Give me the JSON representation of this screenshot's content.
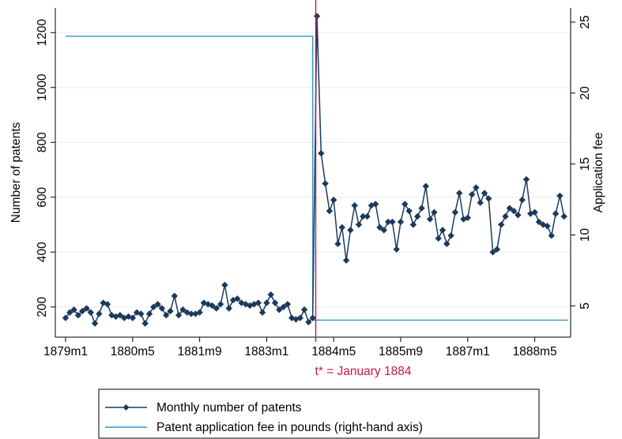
{
  "chart_data": {
    "type": "line",
    "y_label": "Number of patents",
    "y2_label": "Application fee",
    "y_ticks": [
      "200",
      "400",
      "600",
      "800",
      "1000",
      "1200"
    ],
    "y2_ticks": [
      "5",
      "10",
      "15",
      "20",
      "25"
    ],
    "x_ticks": [
      "1879m1",
      "1880m5",
      "1881m9",
      "1883m1",
      "1884m5",
      "1885m9",
      "1887m1",
      "1888m5"
    ],
    "x_tick_months": [
      0,
      16,
      32,
      48,
      64,
      80,
      96,
      112
    ],
    "annotation": "t* = January 1884",
    "annotation_month": 60,
    "ylim": [
      90,
      1290
    ],
    "y2lim": [
      2.8,
      26.0
    ],
    "grid": "horizontal",
    "series": [
      {
        "name": "Monthly number of patents",
        "color": "#1b3a5c",
        "marker": "diamond",
        "start_month": 0,
        "values": [
          160,
          180,
          190,
          170,
          185,
          195,
          180,
          140,
          175,
          215,
          210,
          170,
          165,
          170,
          160,
          165,
          160,
          180,
          175,
          140,
          175,
          200,
          210,
          195,
          170,
          185,
          240,
          170,
          190,
          180,
          175,
          175,
          180,
          215,
          210,
          205,
          195,
          210,
          280,
          195,
          225,
          230,
          215,
          210,
          205,
          210,
          215,
          180,
          215,
          245,
          215,
          190,
          200,
          210,
          160,
          155,
          160,
          190,
          145,
          160,
          1260,
          760,
          650,
          550,
          590,
          430,
          490,
          370,
          480,
          570,
          500,
          530,
          530,
          570,
          575,
          490,
          480,
          510,
          510,
          410,
          510,
          575,
          550,
          500,
          530,
          560,
          640,
          520,
          545,
          450,
          480,
          430,
          460,
          545,
          615,
          520,
          525,
          610,
          635,
          580,
          615,
          595,
          400,
          410,
          500,
          530,
          560,
          550,
          535,
          590,
          665,
          540,
          545,
          510,
          500,
          495,
          460,
          540,
          605,
          530
        ]
      },
      {
        "name": "Patent application fee in pounds (right-hand axis)",
        "color": "#2a97c9",
        "axis": "right",
        "steps": [
          {
            "from_month": 0,
            "to_month": 59,
            "value": 24
          },
          {
            "from_month": 59,
            "to_month": 120,
            "value": 4
          }
        ]
      }
    ]
  },
  "legend": {
    "items": [
      "Monthly number of patents",
      "Patent application fee in pounds (right-hand axis)"
    ]
  },
  "colors": {
    "accent_line": "#c8174b",
    "axis": "#000000",
    "grid": "#e8ecef"
  }
}
